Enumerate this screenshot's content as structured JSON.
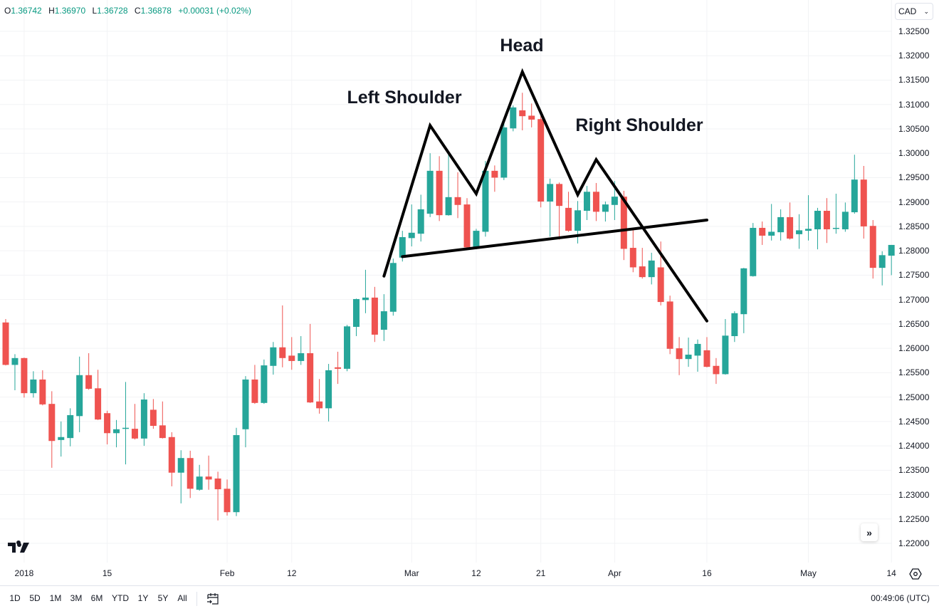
{
  "legend": {
    "o_label": "O",
    "o": "1.36742",
    "h_label": "H",
    "h": "1.36970",
    "l_label": "L",
    "l": "1.36728",
    "c_label": "C",
    "c": "1.36878",
    "change": "+0.00031 (+0.02%)"
  },
  "currency": {
    "selected": "CAD",
    "icon": "chevron-down-icon"
  },
  "annotations": {
    "head": "Head",
    "left_shoulder": "Left Shoulder",
    "right_shoulder": "Right Shoulder"
  },
  "bottom_bar": {
    "ranges": [
      "1D",
      "5D",
      "1M",
      "3M",
      "6M",
      "YTD",
      "1Y",
      "5Y",
      "All"
    ],
    "clock": "00:49:06 (UTC)",
    "goto_icon": "calendar-goto-icon"
  },
  "colors": {
    "up": "#26a69a",
    "down": "#ef5350",
    "drawing": "#000000",
    "grid": "#f2f3f5"
  },
  "chart_data": {
    "type": "candlestick",
    "title": "",
    "ylim": [
      1.2175,
      1.33
    ],
    "yticks": [
      "1.32500",
      "1.32000",
      "1.31500",
      "1.31000",
      "1.30500",
      "1.30000",
      "1.29500",
      "1.29000",
      "1.28500",
      "1.28000",
      "1.27500",
      "1.27000",
      "1.26500",
      "1.26000",
      "1.25500",
      "1.25000",
      "1.24500",
      "1.24000",
      "1.23500",
      "1.23000",
      "1.22500",
      "1.22000"
    ],
    "xticks": [
      {
        "label": "2018",
        "date": "2018-01-02"
      },
      {
        "label": "15",
        "date": "2018-01-15"
      },
      {
        "label": "Feb",
        "date": "2018-02-01"
      },
      {
        "label": "12",
        "date": "2018-02-12"
      },
      {
        "label": "Mar",
        "date": "2018-03-01"
      },
      {
        "label": "12",
        "date": "2018-03-12"
      },
      {
        "label": "21",
        "date": "2018-03-21"
      },
      {
        "label": "Apr",
        "date": "2018-04-02"
      },
      {
        "label": "16",
        "date": "2018-04-16"
      },
      {
        "label": "May",
        "date": "2018-05-01"
      },
      {
        "label": "14",
        "date": "2018-05-14"
      }
    ],
    "grid": true,
    "columns": [
      "date",
      "open",
      "high",
      "low",
      "close"
    ],
    "candles": [
      [
        "2017-12-28",
        1.2653,
        1.266,
        1.2565,
        1.2566
      ],
      [
        "2017-12-29",
        1.2566,
        1.2588,
        1.2514,
        1.258
      ],
      [
        "2018-01-02",
        1.258,
        1.2581,
        1.2499,
        1.2508
      ],
      [
        "2018-01-03",
        1.2508,
        1.2553,
        1.2499,
        1.2536
      ],
      [
        "2018-01-04",
        1.2536,
        1.2555,
        1.2483,
        1.2485
      ],
      [
        "2018-01-05",
        1.2486,
        1.2512,
        1.2355,
        1.241
      ],
      [
        "2018-01-08",
        1.2412,
        1.245,
        1.2378,
        1.2418
      ],
      [
        "2018-01-09",
        1.2416,
        1.2477,
        1.2399,
        1.2463
      ],
      [
        "2018-01-10",
        1.2461,
        1.2583,
        1.2428,
        1.2545
      ],
      [
        "2018-01-11",
        1.2545,
        1.259,
        1.2515,
        1.2517
      ],
      [
        "2018-01-12",
        1.2518,
        1.2556,
        1.2453,
        1.2454
      ],
      [
        "2018-01-15",
        1.2467,
        1.2472,
        1.2403,
        1.2426
      ],
      [
        "2018-01-16",
        1.2426,
        1.2453,
        1.2397,
        1.2434
      ],
      [
        "2018-01-17",
        1.2435,
        1.2531,
        1.2362,
        1.2437
      ],
      [
        "2018-01-18",
        1.2435,
        1.2486,
        1.2413,
        1.2415
      ],
      [
        "2018-01-19",
        1.2415,
        1.2508,
        1.24,
        1.2495
      ],
      [
        "2018-01-22",
        1.2474,
        1.2496,
        1.2435,
        1.2441
      ],
      [
        "2018-01-23",
        1.2442,
        1.2491,
        1.2415,
        1.2416
      ],
      [
        "2018-01-24",
        1.2418,
        1.2428,
        1.2317,
        1.2345
      ],
      [
        "2018-01-25",
        1.2345,
        1.2391,
        1.2282,
        1.2375
      ],
      [
        "2018-01-26",
        1.2375,
        1.239,
        1.2293,
        1.2312
      ],
      [
        "2018-01-29",
        1.231,
        1.2361,
        1.2308,
        1.2337
      ],
      [
        "2018-01-30",
        1.2337,
        1.238,
        1.231,
        1.2331
      ],
      [
        "2018-01-31",
        1.2333,
        1.2347,
        1.2247,
        1.2311
      ],
      [
        "2018-02-01",
        1.2312,
        1.2331,
        1.2257,
        1.2264
      ],
      [
        "2018-02-02",
        1.2264,
        1.2437,
        1.2256,
        1.2422
      ],
      [
        "2018-02-05",
        1.2434,
        1.2543,
        1.2397,
        1.2536
      ],
      [
        "2018-02-06",
        1.2536,
        1.2566,
        1.2486,
        1.2488
      ],
      [
        "2018-02-07",
        1.2488,
        1.2577,
        1.2486,
        1.2565
      ],
      [
        "2018-02-08",
        1.2564,
        1.2613,
        1.2546,
        1.2602
      ],
      [
        "2018-02-09",
        1.2602,
        1.2688,
        1.2561,
        1.258
      ],
      [
        "2018-02-12",
        1.2585,
        1.2623,
        1.2556,
        1.2574
      ],
      [
        "2018-02-13",
        1.2574,
        1.2625,
        1.2566,
        1.259
      ],
      [
        "2018-02-14",
        1.259,
        1.265,
        1.2488,
        1.2489
      ],
      [
        "2018-02-15",
        1.2491,
        1.2537,
        1.2466,
        1.2477
      ],
      [
        "2018-02-16",
        1.2477,
        1.2568,
        1.245,
        1.2555
      ],
      [
        "2018-02-19",
        1.2561,
        1.2593,
        1.2527,
        1.2558
      ],
      [
        "2018-02-20",
        1.2558,
        1.2648,
        1.2553,
        1.2645
      ],
      [
        "2018-02-21",
        1.2644,
        1.2702,
        1.2625,
        1.2701
      ],
      [
        "2018-02-22",
        1.2699,
        1.2761,
        1.2672,
        1.2704
      ],
      [
        "2018-02-23",
        1.2704,
        1.2726,
        1.2613,
        1.2628
      ],
      [
        "2018-02-26",
        1.2638,
        1.2711,
        1.2615,
        1.2676
      ],
      [
        "2018-02-27",
        1.2675,
        1.2784,
        1.2667,
        1.2775
      ],
      [
        "2018-02-28",
        1.2786,
        1.2841,
        1.2778,
        1.2828
      ],
      [
        "2018-03-01",
        1.2826,
        1.2895,
        1.2809,
        1.2837
      ],
      [
        "2018-03-02",
        1.2835,
        1.2915,
        1.2819,
        1.2885
      ],
      [
        "2018-03-05",
        1.2876,
        1.3,
        1.2869,
        1.2964
      ],
      [
        "2018-03-06",
        1.2964,
        1.2994,
        1.2861,
        1.2873
      ],
      [
        "2018-03-07",
        1.2873,
        1.2999,
        1.2872,
        1.291
      ],
      [
        "2018-03-08",
        1.291,
        1.2961,
        1.2867,
        1.2894
      ],
      [
        "2018-03-09",
        1.2895,
        1.2908,
        1.2806,
        1.2807
      ],
      [
        "2018-03-12",
        1.2807,
        1.2845,
        1.2803,
        1.2841
      ],
      [
        "2018-03-13",
        1.2839,
        1.2984,
        1.2829,
        1.2964
      ],
      [
        "2018-03-14",
        1.2964,
        1.2975,
        1.2921,
        1.295
      ],
      [
        "2018-03-15",
        1.295,
        1.3067,
        1.2945,
        1.3053
      ],
      [
        "2018-03-16",
        1.3051,
        1.3098,
        1.3045,
        1.3094
      ],
      [
        "2018-03-19",
        1.3088,
        1.3124,
        1.3047,
        1.3076
      ],
      [
        "2018-03-20",
        1.3077,
        1.3102,
        1.3053,
        1.3069
      ],
      [
        "2018-03-21",
        1.307,
        1.3076,
        1.2889,
        1.2901
      ],
      [
        "2018-03-22",
        1.2901,
        1.2948,
        1.2829,
        1.2937
      ],
      [
        "2018-03-23",
        1.2937,
        1.294,
        1.2823,
        1.2892
      ],
      [
        "2018-03-26",
        1.2888,
        1.2921,
        1.2839,
        1.2841
      ],
      [
        "2018-03-27",
        1.2841,
        1.2902,
        1.2815,
        1.2883
      ],
      [
        "2018-03-28",
        1.2882,
        1.2933,
        1.2863,
        1.2921
      ],
      [
        "2018-03-29",
        1.2921,
        1.2939,
        1.2861,
        1.288
      ],
      [
        "2018-03-30",
        1.288,
        1.2901,
        1.286,
        1.2895
      ],
      [
        "2018-04-02",
        1.2894,
        1.2943,
        1.2863,
        1.2911
      ],
      [
        "2018-04-03",
        1.2911,
        1.2923,
        1.2781,
        1.2804
      ],
      [
        "2018-04-04",
        1.2806,
        1.2847,
        1.2756,
        1.2766
      ],
      [
        "2018-04-05",
        1.2768,
        1.2806,
        1.2743,
        1.2746
      ],
      [
        "2018-04-06",
        1.2746,
        1.2796,
        1.2731,
        1.278
      ],
      [
        "2018-04-09",
        1.2766,
        1.2819,
        1.2688,
        1.2695
      ],
      [
        "2018-04-10",
        1.2696,
        1.2708,
        1.2588,
        1.2599
      ],
      [
        "2018-04-11",
        1.26,
        1.2623,
        1.2545,
        1.2578
      ],
      [
        "2018-04-12",
        1.2578,
        1.2622,
        1.2562,
        1.2587
      ],
      [
        "2018-04-13",
        1.2585,
        1.2618,
        1.2552,
        1.2609
      ],
      [
        "2018-04-16",
        1.2596,
        1.2623,
        1.2561,
        1.2562
      ],
      [
        "2018-04-17",
        1.2564,
        1.258,
        1.2527,
        1.2547
      ],
      [
        "2018-04-18",
        1.2547,
        1.266,
        1.2546,
        1.2626
      ],
      [
        "2018-04-19",
        1.2625,
        1.2676,
        1.2613,
        1.2672
      ],
      [
        "2018-04-20",
        1.267,
        1.2765,
        1.2631,
        1.2764
      ],
      [
        "2018-04-23",
        1.2748,
        1.2857,
        1.2747,
        1.2847
      ],
      [
        "2018-04-24",
        1.2847,
        1.286,
        1.2812,
        1.2831
      ],
      [
        "2018-04-25",
        1.2831,
        1.2896,
        1.2821,
        1.2839
      ],
      [
        "2018-04-26",
        1.2838,
        1.2885,
        1.2821,
        1.2869
      ],
      [
        "2018-04-27",
        1.2869,
        1.2899,
        1.2823,
        1.2825
      ],
      [
        "2018-04-30",
        1.2834,
        1.2875,
        1.2804,
        1.2842
      ],
      [
        "2018-05-01",
        1.2841,
        1.2914,
        1.2821,
        1.2845
      ],
      [
        "2018-05-02",
        1.2844,
        1.2888,
        1.2803,
        1.2882
      ],
      [
        "2018-05-03",
        1.2882,
        1.2908,
        1.2816,
        1.2844
      ],
      [
        "2018-05-04",
        1.2845,
        1.2917,
        1.2835,
        1.2847
      ],
      [
        "2018-05-07",
        1.2844,
        1.2899,
        1.2839,
        1.288
      ],
      [
        "2018-05-08",
        1.2879,
        1.2997,
        1.2876,
        1.2946
      ],
      [
        "2018-05-09",
        1.2946,
        1.2974,
        1.2825,
        1.285
      ],
      [
        "2018-05-10",
        1.2851,
        1.2863,
        1.2743,
        1.2765
      ],
      [
        "2018-05-11",
        1.2765,
        1.2799,
        1.2729,
        1.2791
      ],
      [
        "2018-05-14",
        1.279,
        1.2812,
        1.275,
        1.2812
      ]
    ],
    "drawings": [
      {
        "name": "head-and-shoulders-outline",
        "points": [
          {
            "date": "2018-02-26",
            "price": 1.2748
          },
          {
            "date": "2018-03-05",
            "price": 1.3057
          },
          {
            "date": "2018-03-12",
            "price": 1.2917
          },
          {
            "date": "2018-03-19",
            "price": 1.3167
          },
          {
            "date": "2018-03-27",
            "price": 1.2915
          },
          {
            "date": "2018-03-29",
            "price": 1.2987
          },
          {
            "date": "2018-04-16",
            "price": 1.2656
          }
        ]
      },
      {
        "name": "neckline",
        "points": [
          {
            "date": "2018-02-28",
            "price": 1.2788
          },
          {
            "date": "2018-04-16",
            "price": 1.2863
          }
        ]
      }
    ]
  }
}
